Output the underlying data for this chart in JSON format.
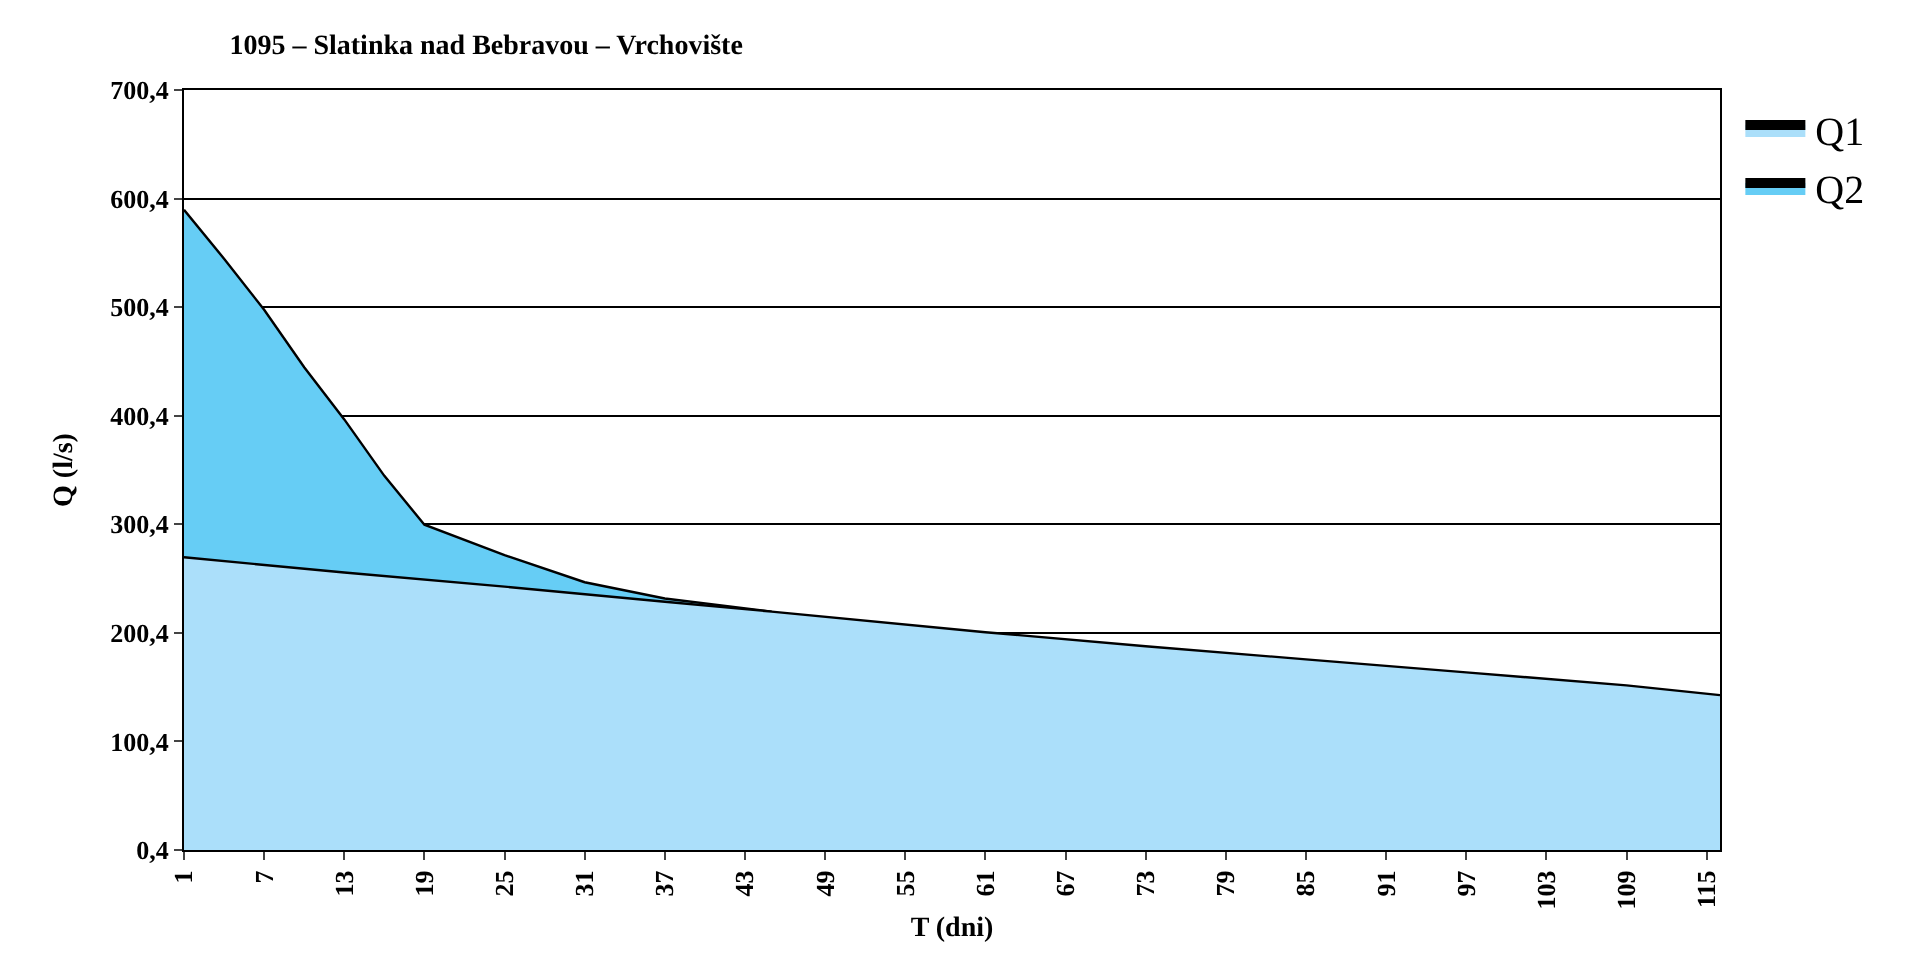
{
  "chart_data": {
    "type": "area",
    "title": "1095 – Slatinka nad Bebravou – Vrchovište",
    "xlabel": "T (dni)",
    "ylabel": "Q (l/s)",
    "xlim": [
      1,
      116
    ],
    "xticks": [
      1,
      7,
      13,
      19,
      25,
      31,
      37,
      43,
      49,
      55,
      61,
      67,
      73,
      79,
      85,
      91,
      97,
      103,
      109,
      115
    ],
    "ylim": [
      0.4,
      700.4
    ],
    "yticks": [
      {
        "value": 0.4,
        "label": "0,4"
      },
      {
        "value": 100.4,
        "label": "100,4"
      },
      {
        "value": 200.4,
        "label": "200,4"
      },
      {
        "value": 300.4,
        "label": "300,4"
      },
      {
        "value": 400.4,
        "label": "400,4"
      },
      {
        "value": 500.4,
        "label": "500,4"
      },
      {
        "value": 600.4,
        "label": "600,4"
      },
      {
        "value": 700.4,
        "label": "700,4"
      }
    ],
    "grid": "y",
    "legend": "top right",
    "series": [
      {
        "name": "Q2",
        "color": "#66cdf5",
        "x": [
          1,
          4,
          7,
          10,
          13,
          16,
          19,
          25,
          31,
          37,
          45
        ],
        "values": [
          590,
          545,
          498,
          445,
          397,
          345,
          300,
          272,
          247,
          232,
          220
        ]
      },
      {
        "name": "Q1",
        "color": "#abdffa",
        "x": [
          1,
          13,
          25,
          37,
          45,
          61,
          73,
          85,
          97,
          109,
          116
        ],
        "values": [
          270,
          256,
          243,
          229,
          220,
          201,
          188,
          176,
          164,
          152,
          143
        ]
      }
    ]
  }
}
